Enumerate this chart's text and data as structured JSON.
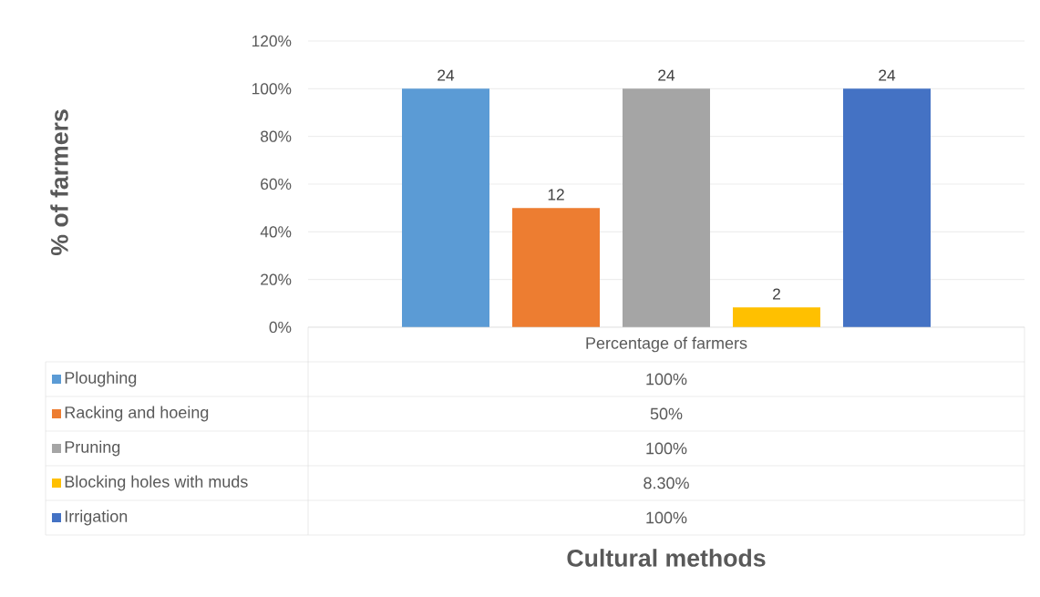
{
  "chart_data": {
    "type": "bar",
    "categories": [
      "Percentage of farmers"
    ],
    "series": [
      {
        "name": "Ploughing",
        "color": "#5b9bd5",
        "values": [
          100
        ]
      },
      {
        "name": "Racking and hoeing",
        "color": "#ed7d31",
        "values": [
          50
        ]
      },
      {
        "name": "Pruning",
        "color": "#a5a5a5",
        "values": [
          100
        ]
      },
      {
        "name": "Blocking holes with muds",
        "color": "#ffc000",
        "values": [
          8.3
        ]
      },
      {
        "name": "Irrigation",
        "color": "#4472c4",
        "values": [
          100
        ]
      }
    ],
    "annotations": [
      "24",
      "12",
      "24",
      "2",
      "24",
      "100%",
      "50%",
      "100%",
      "8.30%",
      "100%",
      "Cultural methods",
      "% of farmers"
    ],
    "ylim": [
      0,
      120
    ],
    "yticks": [
      {
        "value": 0,
        "label": "0%"
      },
      {
        "value": 20,
        "label": "20%"
      },
      {
        "value": 40,
        "label": "40%"
      },
      {
        "value": 60,
        "label": "60%"
      },
      {
        "value": 80,
        "label": "80%"
      },
      {
        "value": 100,
        "label": "100%"
      },
      {
        "value": 120,
        "label": "120%"
      }
    ],
    "grid": "y",
    "legend": "bottom"
  }
}
